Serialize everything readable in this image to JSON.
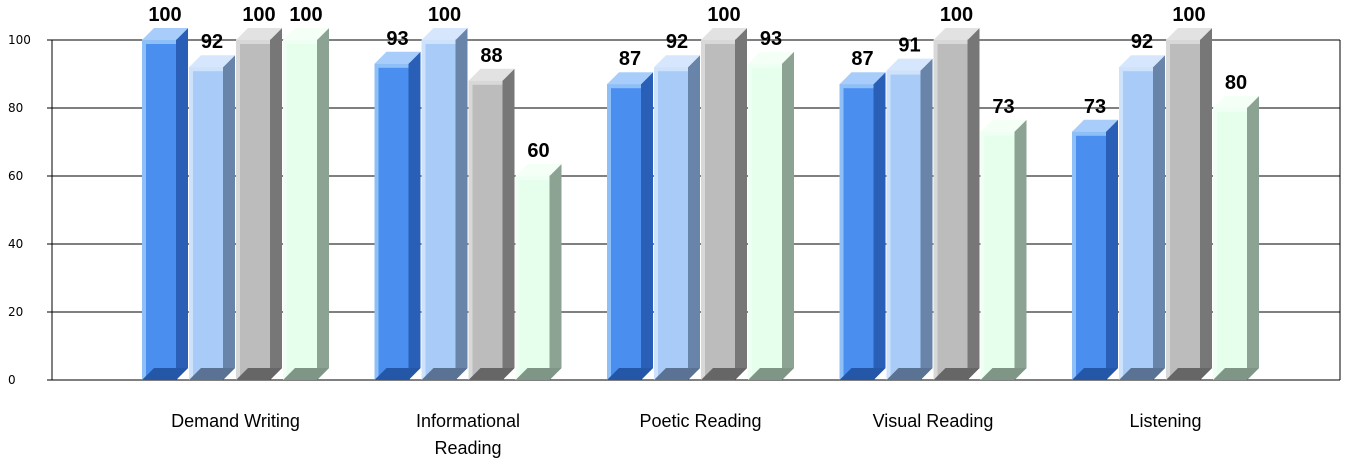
{
  "chart_data": {
    "type": "bar",
    "categories": [
      "Demand Writing",
      "Informational Reading",
      "Poetic Reading",
      "Visual Reading",
      "Listening"
    ],
    "category_lines": [
      [
        "Demand Writing"
      ],
      [
        "Informational",
        "Reading"
      ],
      [
        "Poetic Reading"
      ],
      [
        "Visual Reading"
      ],
      [
        "Listening"
      ]
    ],
    "series": [
      {
        "values": [
          100,
          93,
          87,
          87,
          73
        ],
        "colors": {
          "front": "#4a8ff0",
          "side": "#2a5fb8",
          "top": "#a8cdfb",
          "edge": "#8fbff7",
          "base": "#2457a8"
        }
      },
      {
        "values": [
          92,
          100,
          92,
          91,
          92
        ],
        "colors": {
          "front": "#a9cbf8",
          "side": "#6884a8",
          "top": "#d6e7fd",
          "edge": "#cfe2fc",
          "base": "#5a7394"
        }
      },
      {
        "values": [
          100,
          88,
          100,
          100,
          100
        ],
        "colors": {
          "front": "#bcbcbc",
          "side": "#777777",
          "top": "#e2e2e2",
          "edge": "#d8d8d8",
          "base": "#666666"
        }
      },
      {
        "values": [
          100,
          60,
          93,
          73,
          80
        ],
        "colors": {
          "front": "#e6ffec",
          "side": "#8ca393",
          "top": "#f4fff6",
          "edge": "#f0fff3",
          "base": "#7f9686"
        }
      }
    ],
    "ylim": [
      0,
      100
    ],
    "yticks": [
      0,
      20,
      40,
      60,
      80,
      100
    ],
    "grid": true,
    "title": "",
    "xlabel": "",
    "ylabel": ""
  }
}
